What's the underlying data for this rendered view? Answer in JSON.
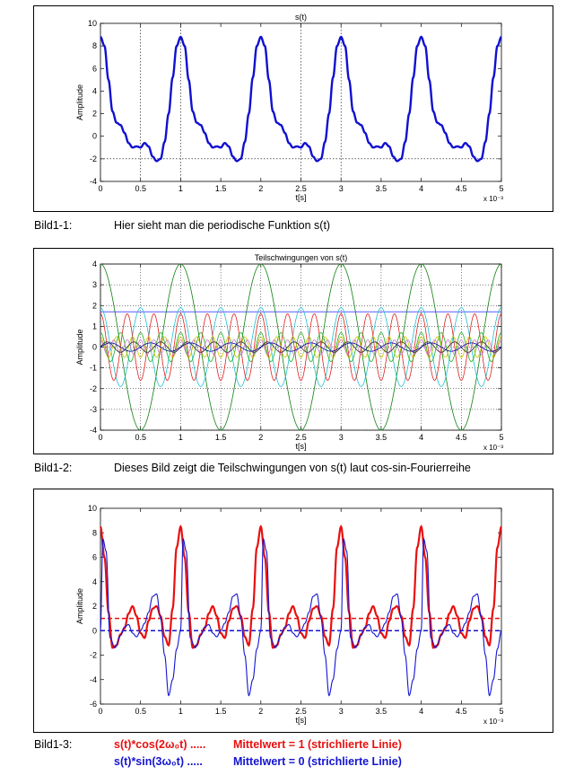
{
  "figures": [
    {
      "caption_label": "Bild1-1:",
      "caption_text": "Hier sieht man die periodische Funktion s(t)"
    },
    {
      "caption_label": "Bild1-2:",
      "caption_text": "Dieses Bild zeigt die Teilschwingungen von s(t) laut cos-sin-Fourierreihe"
    },
    {
      "caption_label": "Bild1-3:",
      "legend": [
        {
          "formula": "s(t)*cos(2ω₀t) .....",
          "value": "Mittelwert = 1 (strichlierte Linie)",
          "color": "#e81010"
        },
        {
          "formula": "s(t)*sin(3ω₀t)  .....",
          "value": "Mittelwert = 0 (strichlierte Linie)",
          "color": "#1414d0"
        }
      ]
    }
  ],
  "chart_data": [
    {
      "type": "line",
      "title": "s(t)",
      "xlabel": "t[s]",
      "ylabel": "Amplitude",
      "x_multiplier": "x 10⁻³",
      "xlim": [
        0,
        5
      ],
      "ylim": [
        -4,
        10
      ],
      "xticks": [
        "0",
        "0.5",
        "1",
        "1.5",
        "2",
        "2.5",
        "3",
        "3.5",
        "4",
        "4.5",
        "5"
      ],
      "yticks": [
        "-4",
        "-2",
        "0",
        "2",
        "4",
        "6",
        "8",
        "10"
      ],
      "period": 1,
      "series": [
        {
          "color": "#1010d0",
          "x": [
            0,
            0.05,
            0.1,
            0.15,
            0.2,
            0.25,
            0.3,
            0.35,
            0.4,
            0.45,
            0.5,
            0.55,
            0.6,
            0.65,
            0.7,
            0.75,
            0.8,
            0.85,
            0.9,
            0.95,
            1.0
          ],
          "y": [
            8.8,
            8.0,
            5.0,
            2.2,
            1.2,
            1.0,
            0.3,
            -0.6,
            -1.0,
            -0.9,
            -1.0,
            -0.6,
            -0.9,
            -1.8,
            -2.2,
            -2.0,
            -0.5,
            2.0,
            5.2,
            8.0,
            8.8
          ]
        }
      ],
      "reference_lines": [
        {
          "axis": "y",
          "value": -2
        },
        {
          "axis": "x",
          "values": [
            0.5,
            1,
            2.5,
            3
          ]
        }
      ]
    },
    {
      "type": "line",
      "title": "Teilschwingungen von s(t)",
      "xlabel": "t[s]",
      "ylabel": "Amplitude",
      "x_multiplier": "x 10⁻³",
      "xlim": [
        0,
        5
      ],
      "ylim": [
        -4,
        4
      ],
      "xticks": [
        "0",
        "0.5",
        "1",
        "1.5",
        "2",
        "2.5",
        "3",
        "3.5",
        "4",
        "4.5",
        "5"
      ],
      "yticks": [
        "-4",
        "-3",
        "-2",
        "-1",
        "0",
        "1",
        "2",
        "3",
        "4"
      ],
      "grid": true,
      "period": 1,
      "series": [
        {
          "kind": "const",
          "value": 1.7,
          "color": "#4040ff"
        },
        {
          "kind": "cos",
          "harmonic": 1,
          "amplitude": 4.0,
          "color": "#108010"
        },
        {
          "kind": "cos",
          "harmonic": 2,
          "amplitude": 1.9,
          "color": "#20c0d0"
        },
        {
          "kind": "cos",
          "harmonic": 3,
          "amplitude": 1.6,
          "color": "#e02020"
        },
        {
          "kind": "cos",
          "harmonic": 4,
          "amplitude": 0.7,
          "color": "#20b020"
        },
        {
          "kind": "cos",
          "harmonic": 5,
          "amplitude": 0.5,
          "color": "#c8c800"
        },
        {
          "kind": "cos",
          "harmonic": 6,
          "amplitude": 0.35,
          "color": "#d070d0"
        },
        {
          "kind": "sin",
          "harmonic": 3,
          "amplitude": 0.25,
          "color": "#303030"
        },
        {
          "kind": "sin",
          "harmonic": 2,
          "amplitude": 0.2,
          "color": "#0000a0"
        }
      ]
    },
    {
      "type": "line",
      "xlabel": "t[s]",
      "ylabel": "Amplitude",
      "x_multiplier": "x 10⁻³",
      "xlim": [
        0,
        5
      ],
      "ylim": [
        -6,
        10
      ],
      "xticks": [
        "0",
        "0.5",
        "1",
        "1.5",
        "2",
        "2.5",
        "3",
        "3.5",
        "4",
        "4.5",
        "5"
      ],
      "yticks": [
        "-6",
        "-4",
        "-2",
        "0",
        "2",
        "4",
        "6",
        "8",
        "10"
      ],
      "period": 1,
      "series": [
        {
          "name": "s(t)*cos(2ω₀t)",
          "color": "#e81010",
          "x": [
            0,
            0.05,
            0.1,
            0.15,
            0.2,
            0.25,
            0.3,
            0.35,
            0.4,
            0.45,
            0.5,
            0.55,
            0.6,
            0.65,
            0.7,
            0.75,
            0.8,
            0.85,
            0.9,
            0.95,
            1.0
          ],
          "y": [
            8.5,
            6.0,
            1.5,
            -1.4,
            -1.2,
            -0.3,
            0.2,
            1.4,
            2.0,
            1.2,
            -0.2,
            -0.6,
            0.8,
            1.8,
            2.0,
            1.2,
            -0.5,
            -1.2,
            1.8,
            6.8,
            8.5
          ]
        },
        {
          "name": "s(t)*sin(3ω₀t)",
          "color": "#1414d0",
          "x": [
            0,
            0.03,
            0.07,
            0.12,
            0.18,
            0.25,
            0.3,
            0.35,
            0.4,
            0.45,
            0.5,
            0.55,
            0.6,
            0.65,
            0.7,
            0.75,
            0.8,
            0.85,
            0.9,
            0.95,
            1.0
          ],
          "y": [
            0,
            7.5,
            6.5,
            -0.6,
            -1.4,
            -0.4,
            0.3,
            0.5,
            -0.2,
            -0.5,
            0.0,
            0.6,
            1.5,
            2.8,
            3.0,
            1.0,
            -2.0,
            -5.3,
            -4.0,
            -1.5,
            0
          ]
        }
      ],
      "mean_lines": [
        {
          "value": 1,
          "color": "#e81010"
        },
        {
          "value": 0,
          "color": "#1414d0"
        }
      ]
    }
  ]
}
